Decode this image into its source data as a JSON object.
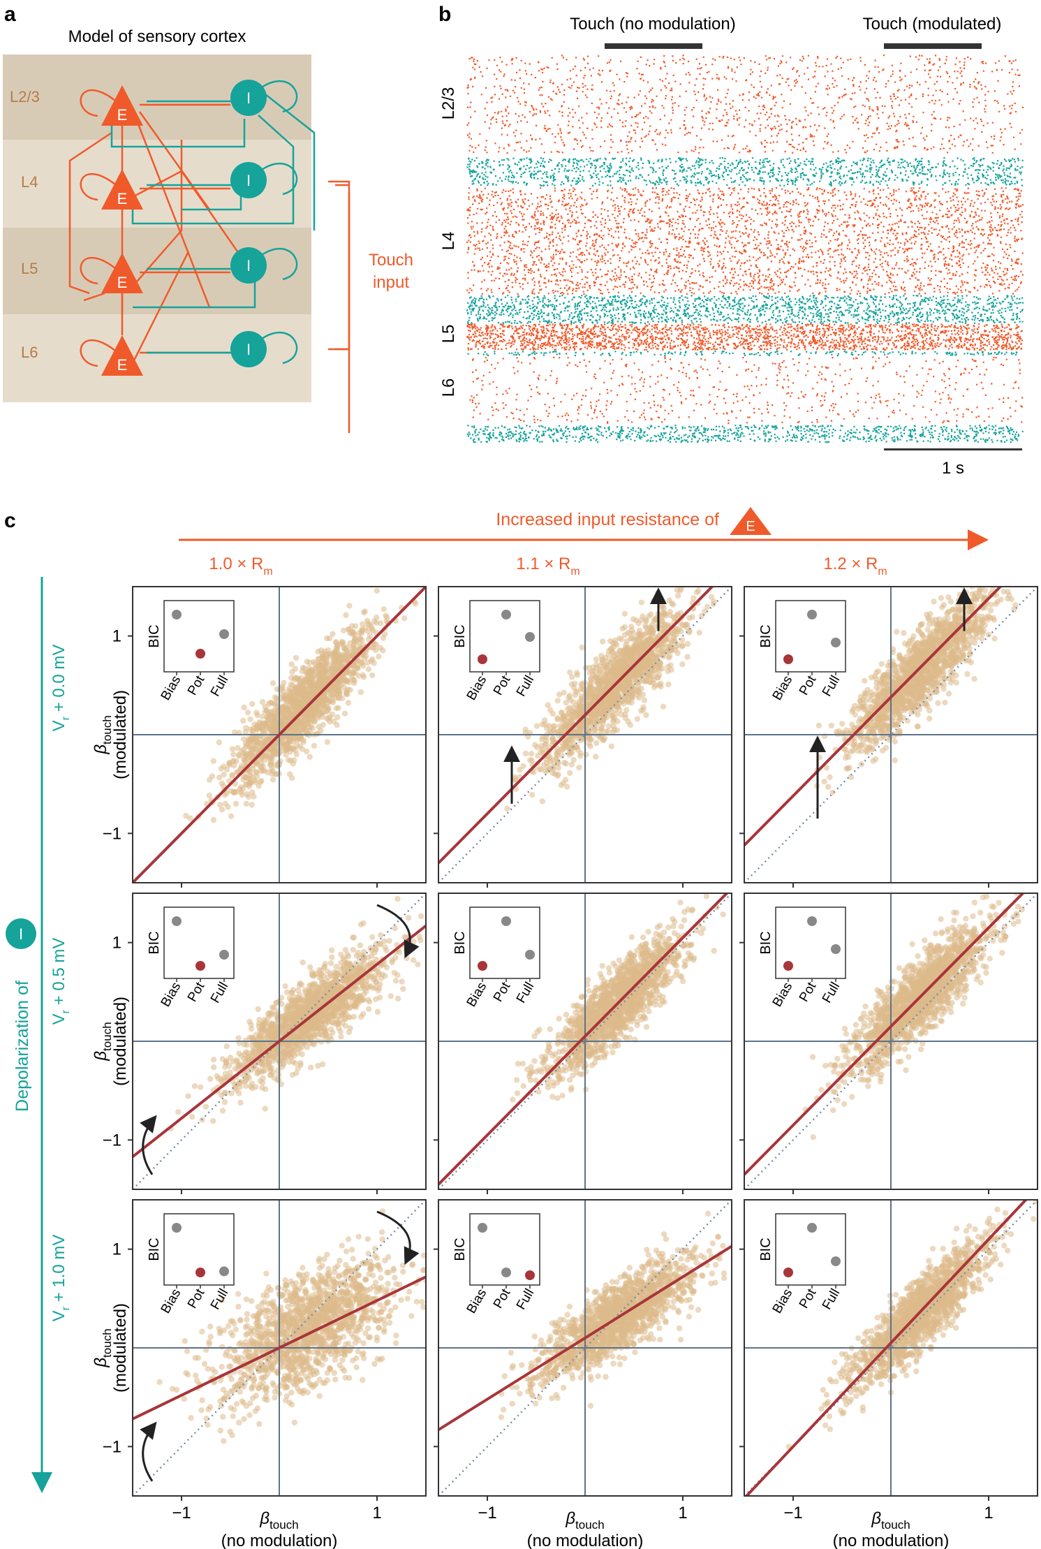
{
  "colors": {
    "excitatory": "#f05a2a",
    "inhibitory": "#15a39a",
    "layer_dark": "#d8cbb6",
    "layer_light": "#e6dccc",
    "scatter": "#dcb98a",
    "fit_line": "#a8353a",
    "identity": "#7a8ea8",
    "axis_zero": "#5d7387",
    "bic_red": "#a8353a",
    "bic_gray": "#888888",
    "arrow": "#222222"
  },
  "panel_a": {
    "letter": "a",
    "title": "Model of sensory cortex",
    "layers": [
      "L2/3",
      "L4",
      "L5",
      "L6"
    ],
    "exc_label": "E",
    "inh_label": "I",
    "touch_input": [
      "Touch",
      "input"
    ]
  },
  "panel_b": {
    "letter": "b",
    "stim_labels": [
      "Touch (no modulation)",
      "Touch (modulated)"
    ],
    "layer_labels": [
      "L2/3",
      "L4",
      "L5",
      "L6"
    ],
    "scale_bar": "1 s"
  },
  "panel_c": {
    "letter": "c",
    "top_arrow_label": "Increased input resistance of",
    "top_arrow_icon": "E",
    "column_prefixes": [
      "1.0",
      "1.1",
      "1.2"
    ],
    "column_suffix": "× R",
    "column_sub": "m",
    "left_arrow_label": "Depolarization of",
    "left_arrow_icon": "I",
    "row_labels": [
      "+ 0.0 mV",
      "+ 0.5 mV",
      "+ 1.0 mV"
    ],
    "row_V": "V",
    "row_sub": "r",
    "ylabel_beta": "β",
    "ylabel_sub": "touch",
    "ylabel_paren": "(modulated)",
    "xlabel_beta": "β",
    "xlabel_sub": "touch",
    "xlabel_paren": "(no modulation)",
    "tick_labels": [
      "−1",
      "1"
    ],
    "bic_ylabel": "BIC",
    "bic_models": [
      "Bias",
      "Pot",
      "Full"
    ]
  },
  "chart_data": [
    {
      "type": "scatter",
      "title": "V_r + 0.0 mV, 1.0 × R_m",
      "xlabel": "β_touch (no modulation)",
      "ylabel": "β_touch (modulated)",
      "xlim": [
        -1.5,
        1.5
      ],
      "ylim": [
        -1.5,
        1.5
      ],
      "fit": {
        "slope": 1.0,
        "intercept": 0.0
      },
      "scatter": {
        "mean": [
          0.25,
          0.3
        ],
        "sd": [
          0.35,
          0.38
        ],
        "corr": 0.86
      },
      "bic": {
        "values": [
          0.9,
          0.2,
          0.55
        ],
        "best": 1
      },
      "arrows": []
    },
    {
      "type": "scatter",
      "title": "V_r + 0.0 mV, 1.1 × R_m",
      "xlabel": "β_touch (no modulation)",
      "ylabel": "β_touch (modulated)",
      "xlim": [
        -1.5,
        1.5
      ],
      "ylim": [
        -1.5,
        1.5
      ],
      "fit": {
        "slope": 1.0,
        "intercept": 0.2
      },
      "scatter": {
        "mean": [
          0.3,
          0.5
        ],
        "sd": [
          0.35,
          0.38
        ],
        "corr": 0.86
      },
      "bic": {
        "values": [
          0.1,
          0.9,
          0.5
        ],
        "best": 0
      },
      "arrows": [
        "up_low",
        "up_high"
      ]
    },
    {
      "type": "scatter",
      "title": "V_r + 0.0 mV, 1.2 × R_m",
      "xlabel": "β_touch (no modulation)",
      "ylabel": "β_touch (modulated)",
      "xlim": [
        -1.5,
        1.5
      ],
      "ylim": [
        -1.5,
        1.5
      ],
      "fit": {
        "slope": 1.0,
        "intercept": 0.38
      },
      "scatter": {
        "mean": [
          0.3,
          0.65
        ],
        "sd": [
          0.35,
          0.38
        ],
        "corr": 0.86
      },
      "bic": {
        "values": [
          0.1,
          0.9,
          0.4
        ],
        "best": 0
      },
      "arrows": [
        "up_low",
        "up_high"
      ]
    },
    {
      "type": "scatter",
      "title": "V_r + 0.5 mV, 1.0 × R_m",
      "xlabel": "β_touch (no modulation)",
      "ylabel": "β_touch (modulated)",
      "xlim": [
        -1.5,
        1.5
      ],
      "ylim": [
        -1.5,
        1.5
      ],
      "fit": {
        "slope": 0.78,
        "intercept": 0.0
      },
      "scatter": {
        "mean": [
          0.3,
          0.25
        ],
        "sd": [
          0.4,
          0.33
        ],
        "corr": 0.85
      },
      "bic": {
        "values": [
          0.9,
          0.1,
          0.3
        ],
        "best": 1
      },
      "arrows": [
        "rot_down",
        "rot_up"
      ]
    },
    {
      "type": "scatter",
      "title": "V_r + 0.5 mV, 1.1 × R_m",
      "xlabel": "β_touch (no modulation)",
      "ylabel": "β_touch (modulated)",
      "xlim": [
        -1.5,
        1.5
      ],
      "ylim": [
        -1.5,
        1.5
      ],
      "fit": {
        "slope": 1.0,
        "intercept": 0.05
      },
      "scatter": {
        "mean": [
          0.3,
          0.35
        ],
        "sd": [
          0.35,
          0.36
        ],
        "corr": 0.86
      },
      "bic": {
        "values": [
          0.1,
          0.9,
          0.3
        ],
        "best": 0
      },
      "arrows": []
    },
    {
      "type": "scatter",
      "title": "V_r + 0.5 mV, 1.2 × R_m",
      "xlabel": "β_touch (no modulation)",
      "ylabel": "β_touch (modulated)",
      "xlim": [
        -1.5,
        1.5
      ],
      "ylim": [
        -1.5,
        1.5
      ],
      "fit": {
        "slope": 1.0,
        "intercept": 0.15
      },
      "scatter": {
        "mean": [
          0.3,
          0.45
        ],
        "sd": [
          0.35,
          0.37
        ],
        "corr": 0.86
      },
      "bic": {
        "values": [
          0.1,
          0.9,
          0.4
        ],
        "best": 0
      },
      "arrows": []
    },
    {
      "type": "scatter",
      "title": "V_r + 1.0 mV, 1.0 × R_m",
      "xlabel": "β_touch (no modulation)",
      "ylabel": "β_touch (modulated)",
      "xlim": [
        -1.5,
        1.5
      ],
      "ylim": [
        -1.5,
        1.5
      ],
      "fit": {
        "slope": 0.48,
        "intercept": 0.0
      },
      "scatter": {
        "mean": [
          0.3,
          0.2
        ],
        "sd": [
          0.45,
          0.35
        ],
        "corr": 0.6
      },
      "bic": {
        "values": [
          0.9,
          0.1,
          0.12
        ],
        "best": 1
      },
      "arrows": [
        "rot_down",
        "rot_up"
      ]
    },
    {
      "type": "scatter",
      "title": "V_r + 1.0 mV, 1.1 × R_m",
      "xlabel": "β_touch (no modulation)",
      "ylabel": "β_touch (modulated)",
      "xlim": [
        -1.5,
        1.5
      ],
      "ylim": [
        -1.5,
        1.5
      ],
      "fit": {
        "slope": 0.62,
        "intercept": 0.1
      },
      "scatter": {
        "mean": [
          0.3,
          0.28
        ],
        "sd": [
          0.4,
          0.3
        ],
        "corr": 0.82
      },
      "bic": {
        "values": [
          0.9,
          0.1,
          0.05
        ],
        "best": 2
      },
      "arrows": []
    },
    {
      "type": "scatter",
      "title": "V_r + 1.0 mV, 1.2 × R_m",
      "xlabel": "β_touch (no modulation)",
      "ylabel": "β_touch (modulated)",
      "xlim": [
        -1.5,
        1.5
      ],
      "ylim": [
        -1.5,
        1.5
      ],
      "fit": {
        "slope": 1.05,
        "intercept": 0.05
      },
      "scatter": {
        "mean": [
          0.3,
          0.35
        ],
        "sd": [
          0.35,
          0.36
        ],
        "corr": 0.88
      },
      "bic": {
        "values": [
          0.1,
          0.9,
          0.3
        ],
        "best": 0
      },
      "arrows": []
    }
  ]
}
